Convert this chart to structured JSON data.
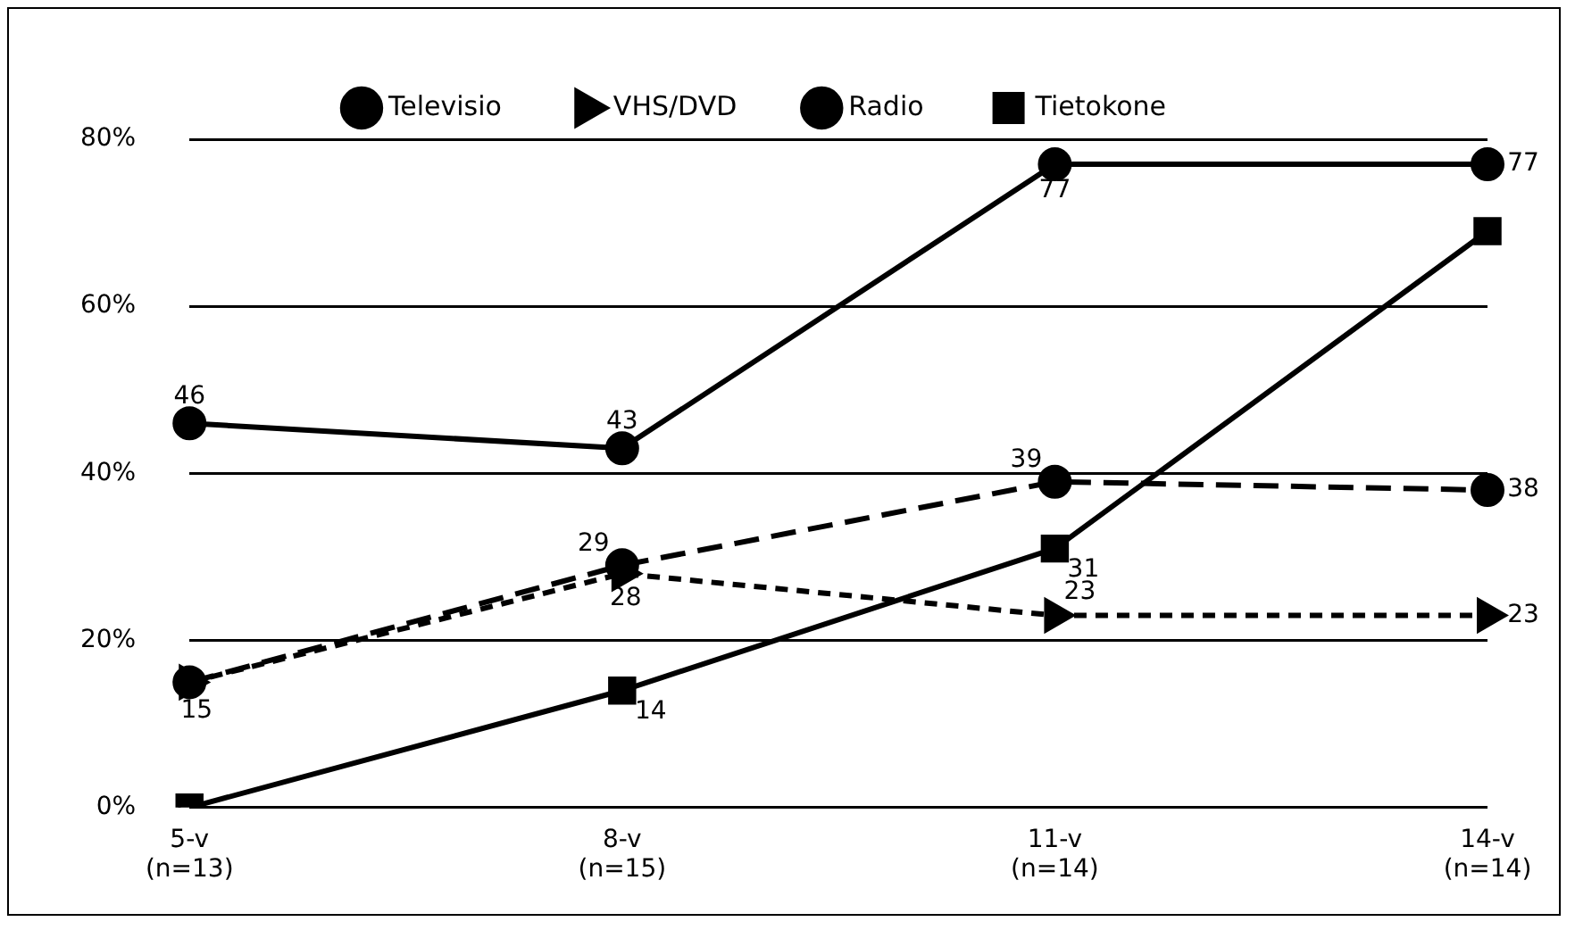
{
  "chart_data": {
    "type": "line",
    "categories": [
      "5-v\n(n=13)",
      "8-v\n(n=15)",
      "11-v\n(n=14)",
      "14-v\n(n=14)"
    ],
    "series": [
      {
        "name": "Televisio",
        "color": "#000000",
        "marker": "circle",
        "line_style": "dashed",
        "values": [
          15,
          29,
          39,
          38
        ],
        "value_labels": [
          "15",
          "29",
          "39",
          "38"
        ]
      },
      {
        "name": "VHS/DVD",
        "color": "#000000",
        "marker": "triangle",
        "line_style": "dotted",
        "values": [
          15,
          28,
          23,
          23
        ],
        "value_labels": [
          null,
          "28",
          "23",
          "23"
        ]
      },
      {
        "name": "Radio",
        "color": "#000000",
        "marker": "circle",
        "line_style": "solid",
        "values": [
          46,
          43,
          77,
          77
        ],
        "value_labels": [
          "46",
          "43",
          "77",
          "77"
        ]
      },
      {
        "name": "Tietokone",
        "color": "#000000",
        "marker": "square",
        "line_style": "solid",
        "values": [
          0,
          14,
          31,
          69
        ],
        "value_labels": [
          null,
          "14",
          "31",
          null
        ]
      }
    ],
    "ylim": [
      0,
      80
    ],
    "yticks": [
      {
        "value": 0,
        "label": "0%"
      },
      {
        "value": 20,
        "label": "20%"
      },
      {
        "value": 40,
        "label": "40%"
      },
      {
        "value": 60,
        "label": "60%"
      },
      {
        "value": 80,
        "label": "80%"
      }
    ],
    "grid": "y",
    "legend": "top"
  }
}
